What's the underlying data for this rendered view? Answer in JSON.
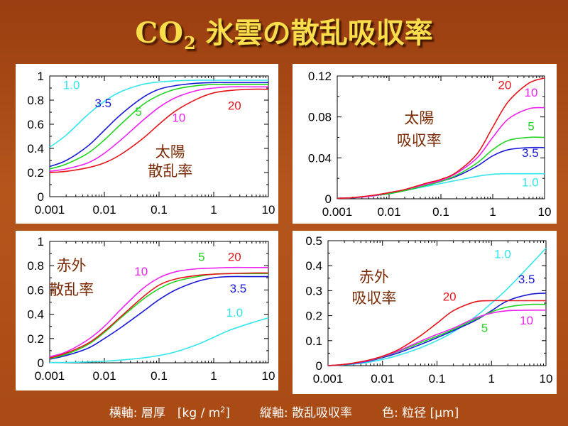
{
  "title": {
    "main": "CO",
    "sub": "2",
    "rest": " 氷雲の散乱吸収率"
  },
  "footer": {
    "x_axis": "横軸: 層厚　[kg / m",
    "x_axis_sup": "2",
    "x_axis_end": "]",
    "y_axis": "縦軸: 散乱吸収率",
    "color": "色: 粒径 [μm]"
  },
  "colors": {
    "1.0": "#33e6ec",
    "3.5": "#1a1ad6",
    "5": "#22d422",
    "10": "#ee22ee",
    "20": "#e4161c"
  },
  "chart_data": [
    {
      "type": "line",
      "label_lines": [
        "太陽",
        "散乱率"
      ],
      "x_scale": "log",
      "xlim": [
        0.001,
        10
      ],
      "ylim": [
        0,
        1
      ],
      "x_ticks": [
        "0.001",
        "0.01",
        "0.1",
        "1",
        "10"
      ],
      "y_ticks": [
        "0",
        "0.2",
        "0.4",
        "0.6",
        "0.8",
        "1"
      ],
      "x": [
        0.001,
        0.002,
        0.005,
        0.01,
        0.02,
        0.05,
        0.1,
        0.2,
        0.5,
        1,
        2,
        5,
        10
      ],
      "series": [
        {
          "name": "1.0",
          "values": [
            0.41,
            0.51,
            0.68,
            0.79,
            0.87,
            0.93,
            0.95,
            0.96,
            0.965,
            0.965,
            0.965,
            0.965,
            0.965
          ]
        },
        {
          "name": "3.5",
          "values": [
            0.25,
            0.3,
            0.42,
            0.55,
            0.68,
            0.82,
            0.89,
            0.92,
            0.94,
            0.945,
            0.945,
            0.945,
            0.945
          ]
        },
        {
          "name": "5",
          "values": [
            0.23,
            0.27,
            0.36,
            0.47,
            0.6,
            0.76,
            0.84,
            0.89,
            0.92,
            0.93,
            0.93,
            0.93,
            0.93
          ]
        },
        {
          "name": "10",
          "values": [
            0.21,
            0.23,
            0.28,
            0.36,
            0.47,
            0.63,
            0.74,
            0.82,
            0.88,
            0.9,
            0.91,
            0.91,
            0.91
          ]
        },
        {
          "name": "20",
          "values": [
            0.2,
            0.21,
            0.24,
            0.28,
            0.35,
            0.48,
            0.6,
            0.71,
            0.81,
            0.86,
            0.88,
            0.89,
            0.89
          ]
        }
      ],
      "series_labels": [
        {
          "name": "1.0",
          "text": "1.0",
          "x": 0.0025,
          "y": 0.89
        },
        {
          "name": "3.5",
          "text": "3.5",
          "x": 0.0095,
          "y": 0.74
        },
        {
          "name": "5",
          "text": "5",
          "x": 0.042,
          "y": 0.67
        },
        {
          "name": "10",
          "text": "10",
          "x": 0.23,
          "y": 0.62
        },
        {
          "name": "20",
          "text": "20",
          "x": 2.4,
          "y": 0.72
        }
      ],
      "panel_label": {
        "x": 0.16,
        "y": [
          0.33,
          0.17
        ]
      }
    },
    {
      "type": "line",
      "label_lines": [
        "太陽",
        "吸収率"
      ],
      "x_scale": "log",
      "xlim": [
        0.001,
        10
      ],
      "ylim": [
        0,
        0.12
      ],
      "x_ticks": [
        "0.001",
        "0.01",
        "0.1",
        "1",
        "10"
      ],
      "y_ticks": [
        "0",
        "0.04",
        "0.08",
        "0.12"
      ],
      "x": [
        0.001,
        0.002,
        0.005,
        0.01,
        0.02,
        0.05,
        0.1,
        0.2,
        0.5,
        1,
        2,
        5,
        10
      ],
      "series": [
        {
          "name": "1.0",
          "values": [
            0.0005,
            0.001,
            0.003,
            0.005,
            0.008,
            0.012,
            0.015,
            0.018,
            0.022,
            0.024,
            0.0245,
            0.0245,
            0.0245
          ]
        },
        {
          "name": "3.5",
          "values": [
            0.0005,
            0.001,
            0.003,
            0.005,
            0.008,
            0.013,
            0.017,
            0.022,
            0.032,
            0.042,
            0.048,
            0.05,
            0.05
          ]
        },
        {
          "name": "5",
          "values": [
            0.0005,
            0.001,
            0.003,
            0.005,
            0.008,
            0.013,
            0.017,
            0.023,
            0.035,
            0.048,
            0.057,
            0.06,
            0.06
          ]
        },
        {
          "name": "10",
          "values": [
            0.0005,
            0.001,
            0.003,
            0.006,
            0.009,
            0.014,
            0.018,
            0.025,
            0.04,
            0.06,
            0.078,
            0.088,
            0.089
          ]
        },
        {
          "name": "20",
          "values": [
            0.0005,
            0.0012,
            0.0035,
            0.006,
            0.009,
            0.015,
            0.019,
            0.026,
            0.044,
            0.07,
            0.095,
            0.113,
            0.118
          ]
        }
      ],
      "series_labels": [
        {
          "name": "20",
          "text": "20",
          "x": 1.7,
          "y": 0.107
        },
        {
          "name": "10",
          "text": "10",
          "x": 5.5,
          "y": 0.1
        },
        {
          "name": "5",
          "text": "5",
          "x": 5.5,
          "y": 0.067
        },
        {
          "name": "3.5",
          "text": "3.5",
          "x": 5.3,
          "y": 0.041
        },
        {
          "name": "1.0",
          "text": "1.0",
          "x": 5.3,
          "y": 0.012
        }
      ],
      "panel_label": {
        "x": 0.038,
        "y": [
          0.074,
          0.052
        ]
      }
    },
    {
      "type": "line",
      "label_lines": [
        "赤外",
        "散乱率"
      ],
      "x_scale": "log",
      "xlim": [
        0.001,
        10
      ],
      "ylim": [
        0,
        1
      ],
      "x_ticks": [
        "0.001",
        "0.01",
        "0.1",
        "1",
        "10"
      ],
      "y_ticks": [
        "0",
        "0.2",
        "0.4",
        "0.6",
        "0.8",
        "1"
      ],
      "x": [
        0.001,
        0.002,
        0.005,
        0.01,
        0.02,
        0.05,
        0.1,
        0.2,
        0.5,
        1,
        2,
        5,
        10
      ],
      "series": [
        {
          "name": "1.0",
          "values": [
            0.002,
            0.003,
            0.007,
            0.013,
            0.022,
            0.04,
            0.06,
            0.09,
            0.15,
            0.21,
            0.27,
            0.33,
            0.37
          ]
        },
        {
          "name": "3.5",
          "values": [
            0.03,
            0.06,
            0.12,
            0.2,
            0.29,
            0.42,
            0.52,
            0.6,
            0.67,
            0.7,
            0.71,
            0.71,
            0.71
          ]
        },
        {
          "name": "5",
          "values": [
            0.035,
            0.07,
            0.15,
            0.25,
            0.37,
            0.52,
            0.61,
            0.67,
            0.71,
            0.73,
            0.735,
            0.735,
            0.735
          ]
        },
        {
          "name": "10",
          "values": [
            0.05,
            0.09,
            0.19,
            0.3,
            0.44,
            0.61,
            0.7,
            0.75,
            0.775,
            0.78,
            0.785,
            0.785,
            0.785
          ]
        },
        {
          "name": "20",
          "values": [
            0.04,
            0.08,
            0.16,
            0.26,
            0.38,
            0.54,
            0.64,
            0.69,
            0.72,
            0.73,
            0.735,
            0.74,
            0.74
          ]
        }
      ],
      "series_labels": [
        {
          "name": "10",
          "text": "10",
          "x": 0.047,
          "y": 0.72
        },
        {
          "name": "5",
          "text": "5",
          "x": 0.6,
          "y": 0.84
        },
        {
          "name": "20",
          "text": "20",
          "x": 2.4,
          "y": 0.84
        },
        {
          "name": "3.5",
          "text": "3.5",
          "x": 2.8,
          "y": 0.58
        },
        {
          "name": "1.0",
          "text": "1.0",
          "x": 2.4,
          "y": 0.38
        }
      ],
      "panel_label": {
        "x": 0.0025,
        "y": [
          0.76,
          0.56
        ]
      }
    },
    {
      "type": "line",
      "label_lines": [
        "赤外",
        "吸収率"
      ],
      "x_scale": "log",
      "xlim": [
        0.001,
        10
      ],
      "ylim": [
        0,
        0.5
      ],
      "x_ticks": [
        "0.001",
        "0.01",
        "0.1",
        "1",
        "10"
      ],
      "y_ticks": [
        "0",
        "0.1",
        "0.2",
        "0.3",
        "0.4",
        "0.5"
      ],
      "x": [
        0.001,
        0.002,
        0.005,
        0.01,
        0.02,
        0.05,
        0.1,
        0.2,
        0.5,
        1,
        2,
        5,
        10
      ],
      "series": [
        {
          "name": "1.0",
          "values": [
            0.0,
            0.003,
            0.012,
            0.025,
            0.042,
            0.072,
            0.1,
            0.135,
            0.195,
            0.25,
            0.31,
            0.4,
            0.47
          ]
        },
        {
          "name": "3.5",
          "values": [
            0.0,
            0.004,
            0.016,
            0.032,
            0.052,
            0.085,
            0.112,
            0.14,
            0.18,
            0.22,
            0.26,
            0.285,
            0.29
          ]
        },
        {
          "name": "5",
          "values": [
            0.0,
            0.005,
            0.018,
            0.035,
            0.058,
            0.092,
            0.118,
            0.145,
            0.185,
            0.215,
            0.235,
            0.245,
            0.245
          ]
        },
        {
          "name": "10",
          "values": [
            0.0,
            0.005,
            0.018,
            0.036,
            0.06,
            0.098,
            0.125,
            0.15,
            0.19,
            0.21,
            0.22,
            0.222,
            0.222
          ]
        },
        {
          "name": "20",
          "values": [
            0.0,
            0.005,
            0.02,
            0.038,
            0.065,
            0.12,
            0.17,
            0.22,
            0.255,
            0.26,
            0.26,
            0.26,
            0.26
          ]
        }
      ],
      "series_labels": [
        {
          "name": "1.0",
          "text": "1.0",
          "x": 1.6,
          "y": 0.43
        },
        {
          "name": "3.5",
          "text": "3.5",
          "x": 4.4,
          "y": 0.33
        },
        {
          "name": "20",
          "text": "20",
          "x": 0.17,
          "y": 0.26
        },
        {
          "name": "5",
          "text": "5",
          "x": 0.75,
          "y": 0.135
        },
        {
          "name": "10",
          "text": "10",
          "x": 4.4,
          "y": 0.165
        }
      ],
      "panel_label": {
        "x": 0.007,
        "y": [
          0.335,
          0.25
        ]
      }
    }
  ]
}
